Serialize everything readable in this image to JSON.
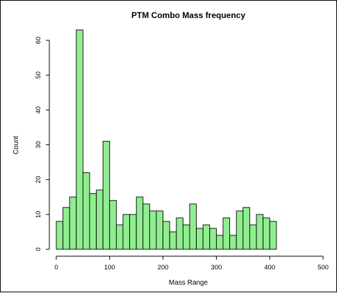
{
  "chart_data": {
    "type": "bar",
    "title": "PTM Combo Mass frequency",
    "xlabel": "Mass Range",
    "ylabel": "Count",
    "bin_width": 12.5,
    "bin_start": 0,
    "values": [
      8,
      12,
      15,
      63,
      22,
      16,
      17,
      31,
      14,
      7,
      10,
      10,
      15,
      13,
      11,
      11,
      8,
      5,
      9,
      7,
      13,
      6,
      7,
      6,
      4,
      9,
      4,
      11,
      12,
      7,
      10,
      9,
      8
    ],
    "xlim": [
      0,
      500
    ],
    "ylim": [
      0,
      66
    ],
    "xticks": [
      0,
      100,
      200,
      300,
      400,
      500
    ],
    "yticks": [
      0,
      10,
      20,
      30,
      40,
      50,
      60
    ],
    "grid": false,
    "legend": "none"
  },
  "colors": {
    "bar_fill": "#90ee90",
    "bar_stroke": "#000000",
    "background": "#ffffff"
  }
}
